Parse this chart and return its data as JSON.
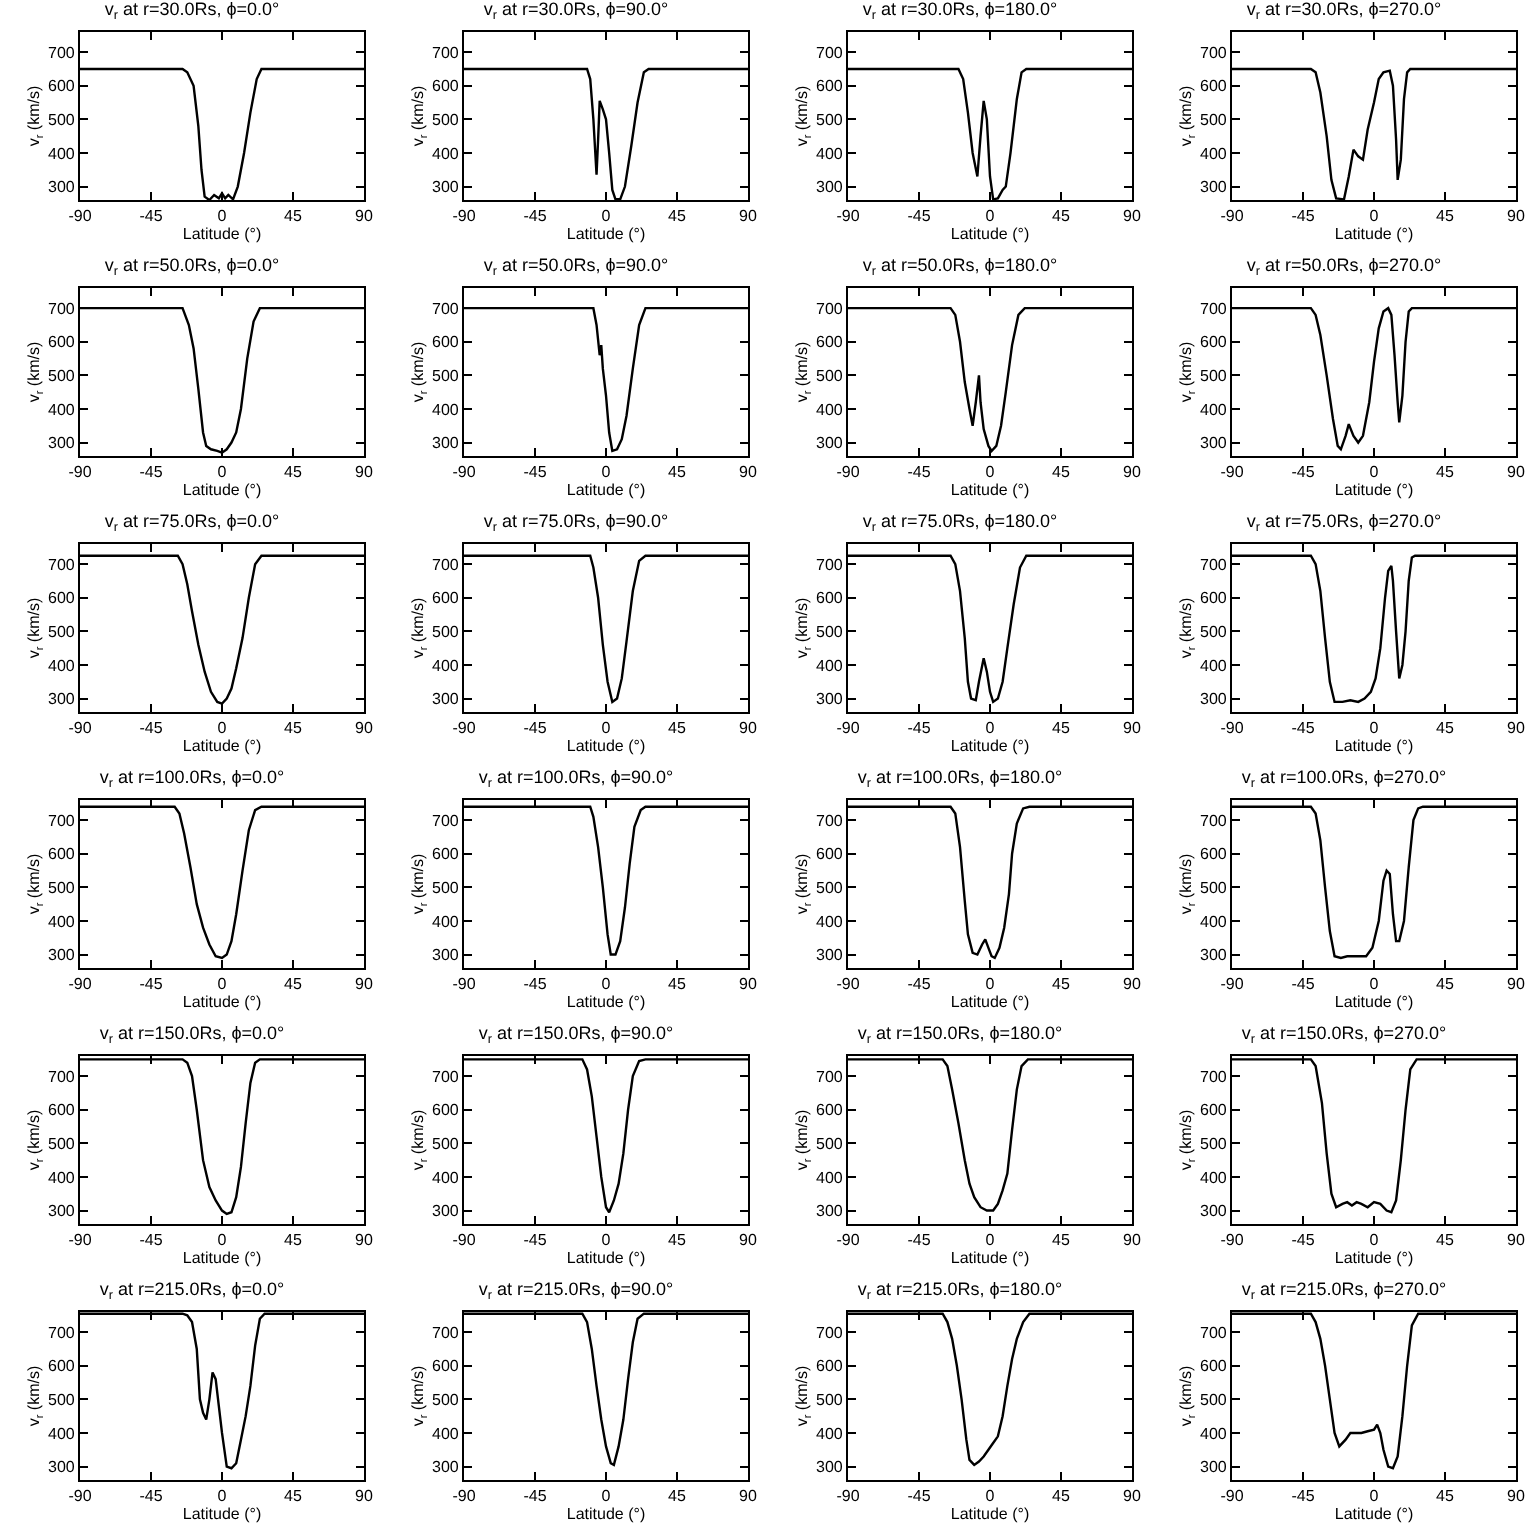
{
  "chart_data": [
    {
      "type": "line",
      "title": "v$_{r}$ at r=30.0Rs, ϕ=0.0°",
      "xlabel": "Latitude (°)",
      "ylabel": "v$_{r}$ (km/s)",
      "xlim": [
        -90,
        90
      ],
      "ylim": [
        260,
        760
      ],
      "xticks": [
        -90,
        -45,
        0,
        45,
        90
      ],
      "yticks": [
        300,
        400,
        500,
        600,
        700
      ],
      "color": "#000000",
      "x": [
        -90,
        -25,
        -22,
        -18,
        -15,
        -13,
        -11,
        -8,
        -5,
        -2,
        0,
        2,
        4,
        7,
        10,
        14,
        18,
        22,
        25,
        90
      ],
      "values": [
        650,
        650,
        640,
        600,
        480,
        350,
        270,
        260,
        275,
        265,
        280,
        265,
        275,
        262,
        300,
        400,
        520,
        620,
        650,
        650
      ]
    },
    {
      "type": "line",
      "title": "v$_{r}$ at r=30.0Rs, ϕ=90.0°",
      "xlabel": "Latitude (°)",
      "ylabel": "v$_{r}$ (km/s)",
      "xlim": [
        -90,
        90
      ],
      "ylim": [
        260,
        760
      ],
      "xticks": [
        -90,
        -45,
        0,
        45,
        90
      ],
      "yticks": [
        300,
        400,
        500,
        600,
        700
      ],
      "color": "#000000",
      "x": [
        -90,
        -12,
        -10,
        -8,
        -6,
        -5,
        -4,
        -2,
        0,
        2,
        4,
        6,
        9,
        12,
        16,
        20,
        24,
        27,
        90
      ],
      "values": [
        650,
        650,
        620,
        500,
        335,
        440,
        555,
        530,
        500,
        400,
        290,
        262,
        262,
        300,
        420,
        550,
        640,
        650,
        650
      ]
    },
    {
      "type": "line",
      "title": "v$_{r}$ at r=30.0Rs, ϕ=180.0°",
      "xlabel": "Latitude (°)",
      "ylabel": "v$_{r}$ (km/s)",
      "xlim": [
        -90,
        90
      ],
      "ylim": [
        260,
        760
      ],
      "xticks": [
        -90,
        -45,
        0,
        45,
        90
      ],
      "yticks": [
        300,
        400,
        500,
        600,
        700
      ],
      "color": "#000000",
      "x": [
        -90,
        -20,
        -17,
        -14,
        -11,
        -8,
        -6,
        -4,
        -2,
        0,
        2,
        5,
        8,
        10,
        13,
        17,
        20,
        23,
        90
      ],
      "values": [
        650,
        650,
        620,
        520,
        400,
        330,
        450,
        555,
        500,
        330,
        262,
        265,
        290,
        300,
        400,
        560,
        640,
        650,
        650
      ]
    },
    {
      "type": "line",
      "title": "v$_{r}$ at r=30.0Rs, ϕ=270.0°",
      "xlabel": "Latitude (°)",
      "ylabel": "v$_{r}$ (km/s)",
      "xlim": [
        -90,
        90
      ],
      "ylim": [
        260,
        760
      ],
      "xticks": [
        -90,
        -45,
        0,
        45,
        90
      ],
      "yticks": [
        300,
        400,
        500,
        600,
        700
      ],
      "color": "#000000",
      "x": [
        -90,
        -40,
        -37,
        -34,
        -30,
        -27,
        -24,
        -19,
        -16,
        -13,
        -10,
        -7,
        -4,
        0,
        3,
        6,
        10,
        12,
        14,
        15,
        17,
        19,
        21,
        23,
        90
      ],
      "values": [
        650,
        650,
        640,
        580,
        450,
        320,
        265,
        262,
        330,
        410,
        390,
        380,
        470,
        550,
        620,
        640,
        645,
        600,
        440,
        320,
        380,
        560,
        640,
        650,
        650
      ]
    },
    {
      "type": "line",
      "title": "v$_{r}$ at r=50.0Rs, ϕ=0.0°",
      "xlabel": "Latitude (°)",
      "ylabel": "v$_{r}$ (km/s)",
      "xlim": [
        -90,
        90
      ],
      "ylim": [
        260,
        760
      ],
      "xticks": [
        -90,
        -45,
        0,
        45,
        90
      ],
      "yticks": [
        300,
        400,
        500,
        600,
        700
      ],
      "color": "#000000",
      "x": [
        -90,
        -25,
        -21,
        -18,
        -15,
        -12,
        -10,
        -7,
        -3,
        0,
        3,
        6,
        9,
        12,
        16,
        20,
        24,
        90
      ],
      "values": [
        700,
        700,
        650,
        580,
        460,
        330,
        290,
        280,
        275,
        270,
        280,
        300,
        330,
        400,
        550,
        660,
        700,
        700
      ]
    },
    {
      "type": "line",
      "title": "v$_{r}$ at r=50.0Rs, ϕ=90.0°",
      "xlabel": "Latitude (°)",
      "ylabel": "v$_{r}$ (km/s)",
      "xlim": [
        -90,
        90
      ],
      "ylim": [
        260,
        760
      ],
      "xticks": [
        -90,
        -45,
        0,
        45,
        90
      ],
      "yticks": [
        300,
        400,
        500,
        600,
        700
      ],
      "color": "#000000",
      "x": [
        -90,
        -8,
        -6,
        -4,
        -3,
        -2,
        0,
        2,
        4,
        7,
        10,
        13,
        17,
        21,
        25,
        90
      ],
      "values": [
        700,
        700,
        650,
        560,
        590,
        520,
        440,
        330,
        275,
        280,
        310,
        380,
        520,
        650,
        700,
        700
      ]
    },
    {
      "type": "line",
      "title": "v$_{r}$ at r=50.0Rs, ϕ=180.0°",
      "xlabel": "Latitude (°)",
      "ylabel": "v$_{r}$ (km/s)",
      "xlim": [
        -90,
        90
      ],
      "ylim": [
        260,
        760
      ],
      "xticks": [
        -90,
        -45,
        0,
        45,
        90
      ],
      "yticks": [
        300,
        400,
        500,
        600,
        700
      ],
      "color": "#000000",
      "x": [
        -90,
        -25,
        -22,
        -19,
        -16,
        -13,
        -11,
        -9,
        -7,
        -6,
        -4,
        -1,
        1,
        4,
        7,
        10,
        14,
        18,
        22,
        90
      ],
      "values": [
        700,
        700,
        680,
        600,
        480,
        400,
        350,
        420,
        500,
        420,
        340,
        290,
        275,
        290,
        350,
        450,
        590,
        680,
        700,
        700
      ]
    },
    {
      "type": "line",
      "title": "v$_{r}$ at r=50.0Rs, ϕ=270.0°",
      "xlabel": "Latitude (°)",
      "ylabel": "v$_{r}$ (km/s)",
      "xlim": [
        -90,
        90
      ],
      "ylim": [
        260,
        760
      ],
      "xticks": [
        -90,
        -45,
        0,
        45,
        90
      ],
      "yticks": [
        300,
        400,
        500,
        600,
        700
      ],
      "color": "#000000",
      "x": [
        -90,
        -40,
        -37,
        -34,
        -30,
        -26,
        -23,
        -21,
        -18,
        -16,
        -13,
        -10,
        -7,
        -3,
        0,
        3,
        6,
        9,
        11,
        13,
        15,
        16,
        18,
        20,
        22,
        24,
        90
      ],
      "values": [
        700,
        700,
        680,
        620,
        500,
        370,
        290,
        280,
        320,
        355,
        320,
        300,
        320,
        420,
        540,
        640,
        690,
        700,
        680,
        560,
        420,
        360,
        440,
        600,
        690,
        700,
        700
      ]
    },
    {
      "type": "line",
      "title": "v$_{r}$ at r=75.0Rs, ϕ=0.0°",
      "xlabel": "Latitude (°)",
      "ylabel": "v$_{r}$ (km/s)",
      "xlim": [
        -90,
        90
      ],
      "ylim": [
        260,
        760
      ],
      "xticks": [
        -90,
        -45,
        0,
        45,
        90
      ],
      "yticks": [
        300,
        400,
        500,
        600,
        700
      ],
      "color": "#000000",
      "x": [
        -90,
        -28,
        -25,
        -22,
        -19,
        -15,
        -11,
        -7,
        -3,
        0,
        3,
        6,
        9,
        13,
        17,
        21,
        25,
        90
      ],
      "values": [
        725,
        725,
        700,
        640,
        560,
        460,
        380,
        320,
        290,
        285,
        300,
        330,
        390,
        480,
        600,
        700,
        725,
        725
      ]
    },
    {
      "type": "line",
      "title": "v$_{r}$ at r=75.0Rs, ϕ=90.0°",
      "xlabel": "Latitude (°)",
      "ylabel": "v$_{r}$ (km/s)",
      "xlim": [
        -90,
        90
      ],
      "ylim": [
        260,
        760
      ],
      "xticks": [
        -90,
        -45,
        0,
        45,
        90
      ],
      "yticks": [
        300,
        400,
        500,
        600,
        700
      ],
      "color": "#000000",
      "x": [
        -90,
        -10,
        -8,
        -5,
        -2,
        1,
        4,
        7,
        10,
        13,
        17,
        21,
        25,
        90
      ],
      "values": [
        725,
        725,
        690,
        600,
        460,
        350,
        290,
        300,
        360,
        470,
        620,
        710,
        725,
        725
      ]
    },
    {
      "type": "line",
      "title": "v$_{r}$ at r=75.0Rs, ϕ=180.0°",
      "xlabel": "Latitude (°)",
      "ylabel": "v$_{r}$ (km/s)",
      "xlim": [
        -90,
        90
      ],
      "ylim": [
        260,
        760
      ],
      "xticks": [
        -90,
        -45,
        0,
        45,
        90
      ],
      "yticks": [
        300,
        400,
        500,
        600,
        700
      ],
      "color": "#000000",
      "x": [
        -90,
        -25,
        -22,
        -19,
        -16,
        -14,
        -12,
        -9,
        -7,
        -4,
        -2,
        0,
        2,
        5,
        8,
        11,
        15,
        19,
        23,
        90
      ],
      "values": [
        725,
        725,
        700,
        620,
        480,
        350,
        300,
        295,
        350,
        420,
        380,
        320,
        290,
        300,
        350,
        450,
        580,
        690,
        725,
        725
      ]
    },
    {
      "type": "line",
      "title": "v$_{r}$ at r=75.0Rs, ϕ=270.0°",
      "xlabel": "Latitude (°)",
      "ylabel": "v$_{r}$ (km/s)",
      "xlim": [
        -90,
        90
      ],
      "ylim": [
        260,
        760
      ],
      "xticks": [
        -90,
        -45,
        0,
        45,
        90
      ],
      "yticks": [
        300,
        400,
        500,
        600,
        700
      ],
      "color": "#000000",
      "x": [
        -90,
        -40,
        -37,
        -34,
        -31,
        -28,
        -25,
        -20,
        -15,
        -10,
        -6,
        -2,
        1,
        4,
        7,
        9,
        11,
        12,
        14,
        16,
        18,
        20,
        22,
        24,
        26,
        90
      ],
      "values": [
        725,
        725,
        700,
        620,
        480,
        350,
        290,
        290,
        295,
        290,
        300,
        320,
        360,
        450,
        600,
        680,
        695,
        650,
        500,
        360,
        400,
        500,
        650,
        720,
        725,
        725
      ]
    },
    {
      "type": "line",
      "title": "v$_{r}$ at r=100.0Rs, ϕ=0.0°",
      "xlabel": "Latitude (°)",
      "ylabel": "v$_{r}$ (km/s)",
      "xlim": [
        -90,
        90
      ],
      "ylim": [
        260,
        760
      ],
      "xticks": [
        -90,
        -45,
        0,
        45,
        90
      ],
      "yticks": [
        300,
        400,
        500,
        600,
        700
      ],
      "color": "#000000",
      "x": [
        -90,
        -30,
        -27,
        -24,
        -20,
        -16,
        -12,
        -8,
        -4,
        0,
        3,
        6,
        9,
        13,
        17,
        21,
        25,
        90
      ],
      "values": [
        740,
        740,
        720,
        660,
        560,
        450,
        380,
        330,
        295,
        290,
        300,
        340,
        420,
        550,
        670,
        730,
        740,
        740
      ]
    },
    {
      "type": "line",
      "title": "v$_{r}$ at r=100.0Rs, ϕ=90.0°",
      "xlabel": "Latitude (°)",
      "ylabel": "v$_{r}$ (km/s)",
      "xlim": [
        -90,
        90
      ],
      "ylim": [
        260,
        760
      ],
      "xticks": [
        -90,
        -45,
        0,
        45,
        90
      ],
      "yticks": [
        300,
        400,
        500,
        600,
        700
      ],
      "color": "#000000",
      "x": [
        -90,
        -10,
        -8,
        -5,
        -2,
        1,
        3,
        6,
        9,
        12,
        15,
        18,
        22,
        25,
        90
      ],
      "values": [
        740,
        740,
        710,
        620,
        500,
        360,
        300,
        300,
        340,
        440,
        570,
        680,
        730,
        740,
        740
      ]
    },
    {
      "type": "line",
      "title": "v$_{r}$ at r=100.0Rs, ϕ=180.0°",
      "xlabel": "Latitude (°)",
      "ylabel": "v$_{r}$ (km/s)",
      "xlim": [
        -90,
        90
      ],
      "ylim": [
        260,
        760
      ],
      "xticks": [
        -90,
        -45,
        0,
        45,
        90
      ],
      "yticks": [
        300,
        400,
        500,
        600,
        700
      ],
      "color": "#000000",
      "x": [
        -90,
        -25,
        -22,
        -19,
        -16,
        -14,
        -11,
        -8,
        -5,
        -3,
        -1,
        1,
        3,
        6,
        9,
        12,
        14,
        17,
        21,
        25,
        90
      ],
      "values": [
        740,
        740,
        720,
        620,
        460,
        360,
        305,
        300,
        330,
        345,
        320,
        295,
        290,
        320,
        380,
        480,
        600,
        690,
        735,
        740,
        740
      ]
    },
    {
      "type": "line",
      "title": "v$_{r}$ at r=100.0Rs, ϕ=270.0°",
      "xlabel": "Latitude (°)",
      "ylabel": "v$_{r}$ (km/s)",
      "xlim": [
        -90,
        90
      ],
      "ylim": [
        260,
        760
      ],
      "xticks": [
        -90,
        -45,
        0,
        45,
        90
      ],
      "yticks": [
        300,
        400,
        500,
        600,
        700
      ],
      "color": "#000000",
      "x": [
        -90,
        -40,
        -37,
        -34,
        -31,
        -28,
        -25,
        -21,
        -17,
        -10,
        -5,
        -1,
        3,
        6,
        8,
        10,
        12,
        14,
        16,
        19,
        22,
        25,
        28,
        31,
        90
      ],
      "values": [
        740,
        740,
        720,
        640,
        500,
        370,
        295,
        290,
        295,
        295,
        295,
        320,
        400,
        520,
        550,
        540,
        420,
        340,
        340,
        400,
        560,
        700,
        735,
        740,
        740
      ]
    },
    {
      "type": "line",
      "title": "v$_{r}$ at r=150.0Rs, ϕ=0.0°",
      "xlabel": "Latitude (°)",
      "ylabel": "v$_{r}$ (km/s)",
      "xlim": [
        -90,
        90
      ],
      "ylim": [
        260,
        760
      ],
      "xticks": [
        -90,
        -45,
        0,
        45,
        90
      ],
      "yticks": [
        300,
        400,
        500,
        600,
        700
      ],
      "color": "#000000",
      "x": [
        -90,
        -25,
        -22,
        -19,
        -16,
        -12,
        -8,
        -4,
        0,
        3,
        6,
        9,
        12,
        15,
        18,
        21,
        24,
        90
      ],
      "values": [
        750,
        750,
        740,
        700,
        600,
        450,
        370,
        330,
        300,
        290,
        295,
        340,
        430,
        560,
        680,
        740,
        750,
        750
      ]
    },
    {
      "type": "line",
      "title": "v$_{r}$ at r=150.0Rs, ϕ=90.0°",
      "xlabel": "Latitude (°)",
      "ylabel": "v$_{r}$ (km/s)",
      "xlim": [
        -90,
        90
      ],
      "ylim": [
        260,
        760
      ],
      "xticks": [
        -90,
        -45,
        0,
        45,
        90
      ],
      "yticks": [
        300,
        400,
        500,
        600,
        700
      ],
      "color": "#000000",
      "x": [
        -90,
        -15,
        -12,
        -9,
        -6,
        -3,
        0,
        2,
        5,
        8,
        11,
        14,
        17,
        21,
        25,
        90
      ],
      "values": [
        750,
        750,
        720,
        640,
        520,
        400,
        310,
        295,
        330,
        380,
        470,
        600,
        700,
        745,
        750,
        750
      ]
    },
    {
      "type": "line",
      "title": "v$_{r}$ at r=150.0Rs, ϕ=180.0°",
      "xlabel": "Latitude (°)",
      "ylabel": "v$_{r}$ (km/s)",
      "xlim": [
        -90,
        90
      ],
      "ylim": [
        260,
        760
      ],
      "xticks": [
        -90,
        -45,
        0,
        45,
        90
      ],
      "yticks": [
        300,
        400,
        500,
        600,
        700
      ],
      "color": "#000000",
      "x": [
        -90,
        -30,
        -27,
        -24,
        -20,
        -16,
        -13,
        -10,
        -6,
        -2,
        2,
        5,
        8,
        11,
        14,
        17,
        20,
        24,
        90
      ],
      "values": [
        750,
        750,
        730,
        660,
        560,
        450,
        380,
        340,
        310,
        300,
        300,
        320,
        360,
        410,
        540,
        660,
        730,
        750,
        750
      ]
    },
    {
      "type": "line",
      "title": "v$_{r}$ at r=150.0Rs, ϕ=270.0°",
      "xlabel": "Latitude (°)",
      "ylabel": "v$_{r}$ (km/s)",
      "xlim": [
        -90,
        90
      ],
      "ylim": [
        260,
        760
      ],
      "xticks": [
        -90,
        -45,
        0,
        45,
        90
      ],
      "yticks": [
        300,
        400,
        500,
        600,
        700
      ],
      "color": "#000000",
      "x": [
        -90,
        -40,
        -37,
        -33,
        -30,
        -27,
        -24,
        -20,
        -17,
        -14,
        -11,
        -8,
        -4,
        0,
        4,
        8,
        11,
        14,
        17,
        20,
        23,
        27,
        90
      ],
      "values": [
        750,
        750,
        730,
        620,
        470,
        350,
        310,
        320,
        325,
        315,
        325,
        320,
        310,
        325,
        320,
        300,
        295,
        330,
        450,
        600,
        720,
        750,
        750
      ]
    },
    {
      "type": "line",
      "title": "v$_{r}$ at r=215.0Rs, ϕ=0.0°",
      "xlabel": "Latitude (°)",
      "ylabel": "v$_{r}$ (km/s)",
      "xlim": [
        -90,
        90
      ],
      "ylim": [
        260,
        760
      ],
      "xticks": [
        -90,
        -45,
        0,
        45,
        90
      ],
      "yticks": [
        300,
        400,
        500,
        600,
        700
      ],
      "color": "#000000",
      "x": [
        -90,
        -25,
        -22,
        -19,
        -16,
        -14,
        -12,
        -10,
        -8,
        -6,
        -4,
        -2,
        0,
        3,
        6,
        9,
        12,
        15,
        18,
        21,
        24,
        27,
        90
      ],
      "values": [
        755,
        755,
        750,
        730,
        650,
        500,
        460,
        440,
        500,
        580,
        560,
        480,
        400,
        300,
        295,
        310,
        380,
        450,
        540,
        660,
        740,
        755,
        755
      ]
    },
    {
      "type": "line",
      "title": "v$_{r}$ at r=215.0Rs, ϕ=90.0°",
      "xlabel": "Latitude (°)",
      "ylabel": "v$_{r}$ (km/s)",
      "xlim": [
        -90,
        90
      ],
      "ylim": [
        260,
        760
      ],
      "xticks": [
        -90,
        -45,
        0,
        45,
        90
      ],
      "yticks": [
        300,
        400,
        500,
        600,
        700
      ],
      "color": "#000000",
      "x": [
        -90,
        -15,
        -12,
        -9,
        -6,
        -3,
        0,
        3,
        5,
        8,
        11,
        14,
        17,
        20,
        24,
        90
      ],
      "values": [
        755,
        755,
        730,
        650,
        540,
        440,
        360,
        310,
        305,
        360,
        440,
        560,
        670,
        740,
        755,
        755
      ]
    },
    {
      "type": "line",
      "title": "v$_{r}$ at r=215.0Rs, ϕ=180.0°",
      "xlabel": "Latitude (°)",
      "ylabel": "v$_{r}$ (km/s)",
      "xlim": [
        -90,
        90
      ],
      "ylim": [
        260,
        760
      ],
      "xticks": [
        -90,
        -45,
        0,
        45,
        90
      ],
      "yticks": [
        300,
        400,
        500,
        600,
        700
      ],
      "color": "#000000",
      "x": [
        -90,
        -30,
        -27,
        -24,
        -21,
        -18,
        -15,
        -13,
        -10,
        -7,
        -4,
        -1,
        2,
        5,
        8,
        11,
        14,
        17,
        21,
        25,
        90
      ],
      "values": [
        755,
        755,
        730,
        680,
        600,
        500,
        380,
        320,
        305,
        315,
        330,
        350,
        370,
        390,
        450,
        540,
        620,
        680,
        730,
        755,
        755
      ]
    },
    {
      "type": "line",
      "title": "v$_{r}$ at r=215.0Rs, ϕ=270.0°",
      "xlabel": "Latitude (°)",
      "ylabel": "v$_{r}$ (km/s)",
      "xlim": [
        -90,
        90
      ],
      "ylim": [
        260,
        760
      ],
      "xticks": [
        -90,
        -45,
        0,
        45,
        90
      ],
      "yticks": [
        300,
        400,
        500,
        600,
        700
      ],
      "color": "#000000",
      "x": [
        -90,
        -40,
        -37,
        -34,
        -31,
        -28,
        -25,
        -22,
        -18,
        -15,
        -12,
        -8,
        -4,
        0,
        2,
        4,
        6,
        9,
        12,
        15,
        18,
        21,
        24,
        28,
        90
      ],
      "values": [
        755,
        755,
        730,
        680,
        600,
        500,
        400,
        360,
        380,
        400,
        400,
        400,
        405,
        410,
        425,
        400,
        350,
        300,
        295,
        330,
        450,
        600,
        720,
        755,
        755
      ]
    }
  ]
}
